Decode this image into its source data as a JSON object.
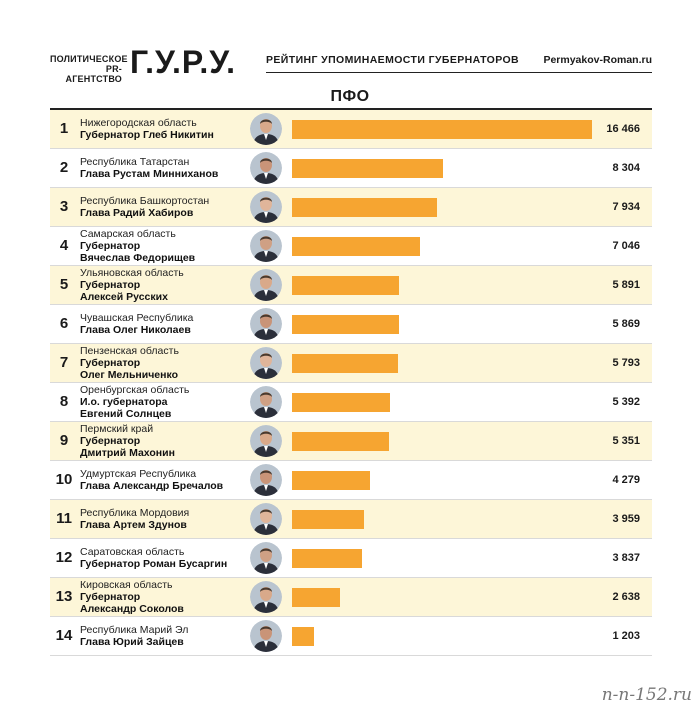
{
  "header": {
    "agency_line1": "ПОЛИТИЧЕСКОЕ",
    "agency_line2": "PR-АГЕНТСТВО",
    "logo": "Г.У.Р.У.",
    "subtitle": "РЕЙТИНГ УПОМИНАЕМОСТИ ГУБЕРНАТОРОВ",
    "site": "Permyakov-Roman.ru"
  },
  "region": "ПФО",
  "watermark": "n-n-152.ru",
  "colors": {
    "bar": "#f6a531",
    "alt_row": "#fdf6d8"
  },
  "chart_data": {
    "type": "bar",
    "orientation": "horizontal",
    "title": "ПФО",
    "xlim": [
      0,
      16466
    ],
    "grid": false,
    "rows": [
      {
        "rank": "1",
        "region": "Нижегородская область",
        "person_lines": [
          "Губернатор Глеб Никитин"
        ],
        "value": 16466,
        "value_label": "16 466"
      },
      {
        "rank": "2",
        "region": "Республика Татарстан",
        "person_lines": [
          "Глава Рустам Минниханов"
        ],
        "value": 8304,
        "value_label": "8 304"
      },
      {
        "rank": "3",
        "region": "Республика Башкортостан",
        "person_lines": [
          "Глава Радий Хабиров"
        ],
        "value": 7934,
        "value_label": "7 934"
      },
      {
        "rank": "4",
        "region": "Самарская область",
        "person_lines": [
          "Губернатор",
          "Вячеслав Федорищев"
        ],
        "value": 7046,
        "value_label": "7 046"
      },
      {
        "rank": "5",
        "region": "Ульяновская область",
        "person_lines": [
          "Губернатор",
          "Алексей Русских"
        ],
        "value": 5891,
        "value_label": "5 891"
      },
      {
        "rank": "6",
        "region": "Чувашская Республика",
        "person_lines": [
          "Глава Олег Николаев"
        ],
        "value": 5869,
        "value_label": "5 869"
      },
      {
        "rank": "7",
        "region": "Пензенская область",
        "person_lines": [
          "Губернатор",
          "Олег Мельниченко"
        ],
        "value": 5793,
        "value_label": "5 793"
      },
      {
        "rank": "8",
        "region": "Оренбургская область",
        "person_lines": [
          "И.о. губернатора",
          "Евгений Солнцев"
        ],
        "value": 5392,
        "value_label": "5 392"
      },
      {
        "rank": "9",
        "region": "Пермский край",
        "person_lines": [
          "Губернатор",
          "Дмитрий Махонин"
        ],
        "value": 5351,
        "value_label": "5 351"
      },
      {
        "rank": "10",
        "region": "Удмуртская Республика",
        "person_lines": [
          "Глава Александр Бречалов"
        ],
        "value": 4279,
        "value_label": "4 279"
      },
      {
        "rank": "11",
        "region": "Республика Мордовия",
        "person_lines": [
          "Глава Артем Здунов"
        ],
        "value": 3959,
        "value_label": "3 959"
      },
      {
        "rank": "12",
        "region": "Саратовская область",
        "person_lines": [
          "Губернатор Роман Бусаргин"
        ],
        "value": 3837,
        "value_label": "3 837"
      },
      {
        "rank": "13",
        "region": "Кировская область",
        "person_lines": [
          "Губернатор",
          "Александр Соколов"
        ],
        "value": 2638,
        "value_label": "2 638"
      },
      {
        "rank": "14",
        "region": "Республика Марий Эл",
        "person_lines": [
          "Глава Юрий Зайцев"
        ],
        "value": 1203,
        "value_label": "1 203"
      }
    ]
  }
}
